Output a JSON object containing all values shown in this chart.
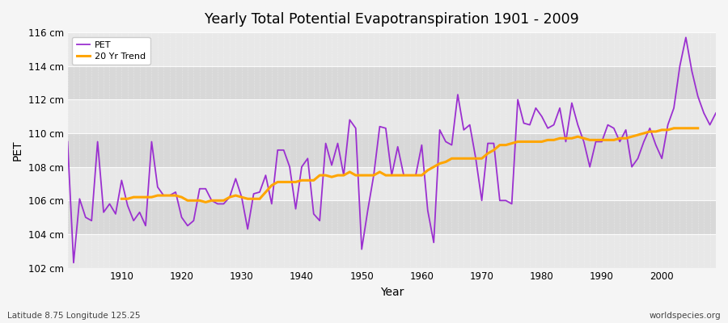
{
  "title": "Yearly Total Potential Evapotranspiration 1901 - 2009",
  "xlabel": "Year",
  "ylabel": "PET",
  "subtitle": "Latitude 8.75 Longitude 125.25",
  "watermark": "worldspecies.org",
  "pet_color": "#9b30d0",
  "trend_color": "#ffa500",
  "bg_light": "#e8e8e8",
  "bg_dark": "#d8d8d8",
  "ylim": [
    102,
    116
  ],
  "ytick_labels": [
    "102 cm",
    "104 cm",
    "106 cm",
    "108 cm",
    "110 cm",
    "112 cm",
    "114 cm",
    "116 cm"
  ],
  "ytick_values": [
    102,
    104,
    106,
    108,
    110,
    112,
    114,
    116
  ],
  "years": [
    1901,
    1902,
    1903,
    1904,
    1905,
    1906,
    1907,
    1908,
    1909,
    1910,
    1911,
    1912,
    1913,
    1914,
    1915,
    1916,
    1917,
    1918,
    1919,
    1920,
    1921,
    1922,
    1923,
    1924,
    1925,
    1926,
    1927,
    1928,
    1929,
    1930,
    1931,
    1932,
    1933,
    1934,
    1935,
    1936,
    1937,
    1938,
    1939,
    1940,
    1941,
    1942,
    1943,
    1944,
    1945,
    1946,
    1947,
    1948,
    1949,
    1950,
    1951,
    1952,
    1953,
    1954,
    1955,
    1956,
    1957,
    1958,
    1959,
    1960,
    1961,
    1962,
    1963,
    1964,
    1965,
    1966,
    1967,
    1968,
    1969,
    1970,
    1971,
    1972,
    1973,
    1974,
    1975,
    1976,
    1977,
    1978,
    1979,
    1980,
    1981,
    1982,
    1983,
    1984,
    1985,
    1986,
    1987,
    1988,
    1989,
    1990,
    1991,
    1992,
    1993,
    1994,
    1995,
    1996,
    1997,
    1998,
    1999,
    2000,
    2001,
    2002,
    2003,
    2004,
    2005,
    2006,
    2007,
    2008,
    2009
  ],
  "pet_values": [
    109.5,
    102.3,
    106.1,
    105.0,
    104.8,
    109.5,
    105.3,
    105.8,
    105.2,
    107.2,
    105.7,
    104.8,
    105.3,
    104.5,
    109.5,
    106.8,
    106.3,
    106.3,
    106.5,
    105.0,
    104.5,
    104.8,
    106.7,
    106.7,
    106.0,
    105.8,
    105.8,
    106.2,
    107.3,
    106.2,
    104.3,
    106.4,
    106.5,
    107.5,
    105.8,
    109.0,
    109.0,
    108.0,
    105.5,
    108.0,
    108.5,
    105.2,
    104.8,
    109.4,
    108.1,
    109.4,
    107.5,
    110.8,
    110.3,
    103.1,
    105.4,
    107.5,
    110.4,
    110.3,
    107.5,
    109.2,
    107.5,
    107.5,
    107.5,
    109.3,
    105.4,
    103.5,
    110.2,
    109.5,
    109.3,
    112.3,
    110.2,
    110.5,
    108.5,
    106.0,
    109.4,
    109.4,
    106.0,
    106.0,
    105.8,
    112.0,
    110.6,
    110.5,
    111.5,
    111.0,
    110.3,
    110.5,
    111.5,
    109.5,
    111.8,
    110.5,
    109.5,
    108.0,
    109.5,
    109.5,
    110.5,
    110.3,
    109.5,
    110.2,
    108.0,
    108.5,
    109.5,
    110.3,
    109.3,
    108.5,
    110.5,
    111.5,
    114.0,
    115.7,
    113.7,
    112.2,
    111.2,
    110.5,
    111.2
  ],
  "trend_values": [
    null,
    null,
    null,
    null,
    null,
    null,
    null,
    null,
    null,
    106.1,
    106.1,
    106.2,
    106.2,
    106.2,
    106.2,
    106.3,
    106.3,
    106.3,
    106.3,
    106.2,
    106.0,
    106.0,
    106.0,
    105.9,
    106.0,
    106.0,
    106.0,
    106.2,
    106.3,
    106.2,
    106.1,
    106.1,
    106.1,
    106.5,
    106.9,
    107.1,
    107.1,
    107.1,
    107.1,
    107.2,
    107.2,
    107.2,
    107.5,
    107.5,
    107.4,
    107.5,
    107.5,
    107.7,
    107.5,
    107.5,
    107.5,
    107.5,
    107.7,
    107.5,
    107.5,
    107.5,
    107.5,
    107.5,
    107.5,
    107.5,
    107.8,
    108.0,
    108.2,
    108.3,
    108.5,
    108.5,
    108.5,
    108.5,
    108.5,
    108.5,
    108.8,
    109.0,
    109.3,
    109.3,
    109.4,
    109.5,
    109.5,
    109.5,
    109.5,
    109.5,
    109.6,
    109.6,
    109.7,
    109.7,
    109.7,
    109.8,
    109.7,
    109.6,
    109.6,
    109.6,
    109.6,
    109.6,
    109.7,
    109.7,
    109.8,
    109.9,
    110.0,
    110.1,
    110.1,
    110.2,
    110.2,
    110.3,
    110.3,
    110.3,
    110.3,
    110.3,
    null,
    null,
    null
  ]
}
